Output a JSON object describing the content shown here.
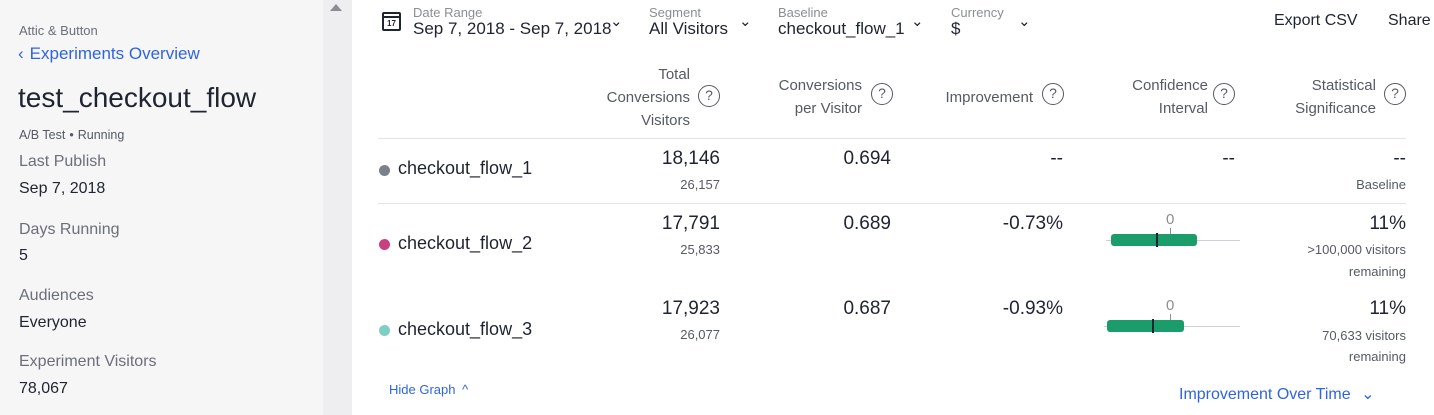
{
  "sidebar": {
    "breadcrumb": "Attic & Button",
    "back_link": "Experiments Overview",
    "back_chevron": "‹",
    "title": "test_checkout_flow",
    "type": "A/B Test",
    "separator": "•",
    "status": "Running",
    "fields": [
      {
        "label": "Last Publish",
        "value": "Sep 7, 2018"
      },
      {
        "label": "Days Running",
        "value": "5"
      },
      {
        "label": "Audiences",
        "value": "Everyone"
      },
      {
        "label": "Experiment Visitors",
        "value": "78,067"
      }
    ]
  },
  "toolbar": {
    "calendar_day": "17",
    "date_range": {
      "label": "Date Range",
      "value": "Sep 7, 2018 - Sep 7, 2018"
    },
    "segment": {
      "label": "Segment",
      "value": "All Visitors"
    },
    "baseline": {
      "label": "Baseline",
      "value": "checkout_flow_1"
    },
    "currency": {
      "label": "Currency",
      "value": "$"
    },
    "export": "Export CSV",
    "share": "Share",
    "caret": "⌄"
  },
  "table": {
    "headers": {
      "total_l1": "Total",
      "total_l2": "Conversions",
      "total_l3": "Visitors",
      "cpv_l1": "Conversions",
      "cpv_l2": "per Visitor",
      "improvement": "Improvement",
      "ci_l1": "Confidence",
      "ci_l2": "Interval",
      "sig_l1": "Statistical",
      "sig_l2": "Significance",
      "help": "?"
    },
    "rows": [
      {
        "name": "checkout_flow_1",
        "color": "#7c8189",
        "conversions": "18,146",
        "visitors": "26,157",
        "cpv": "0.694",
        "improvement": "--",
        "ci": "--",
        "sig": "--",
        "sig_sub1": "Baseline",
        "sig_sub2": ""
      },
      {
        "name": "checkout_flow_2",
        "color": "#c8407f",
        "conversions": "17,791",
        "visitors": "25,833",
        "cpv": "0.689",
        "improvement": "-0.73%",
        "ci_zero": "0",
        "sig": "11%",
        "sig_sub1": ">100,000 visitors",
        "sig_sub2": "remaining"
      },
      {
        "name": "checkout_flow_3",
        "color": "#7ecfc2",
        "conversions": "17,923",
        "visitors": "26,077",
        "cpv": "0.687",
        "improvement": "-0.93%",
        "ci_zero": "0",
        "sig": "11%",
        "sig_sub1": "70,633 visitors",
        "sig_sub2": "remaining"
      }
    ]
  },
  "footer": {
    "hide_graph": "Hide Graph",
    "hide_chevron": "^",
    "improvement_over_time": "Improvement Over Time",
    "improvement_chevron": "⌄"
  },
  "colors": {
    "accent": "#2f64e0",
    "ci_bar": "#1a9c6b"
  }
}
